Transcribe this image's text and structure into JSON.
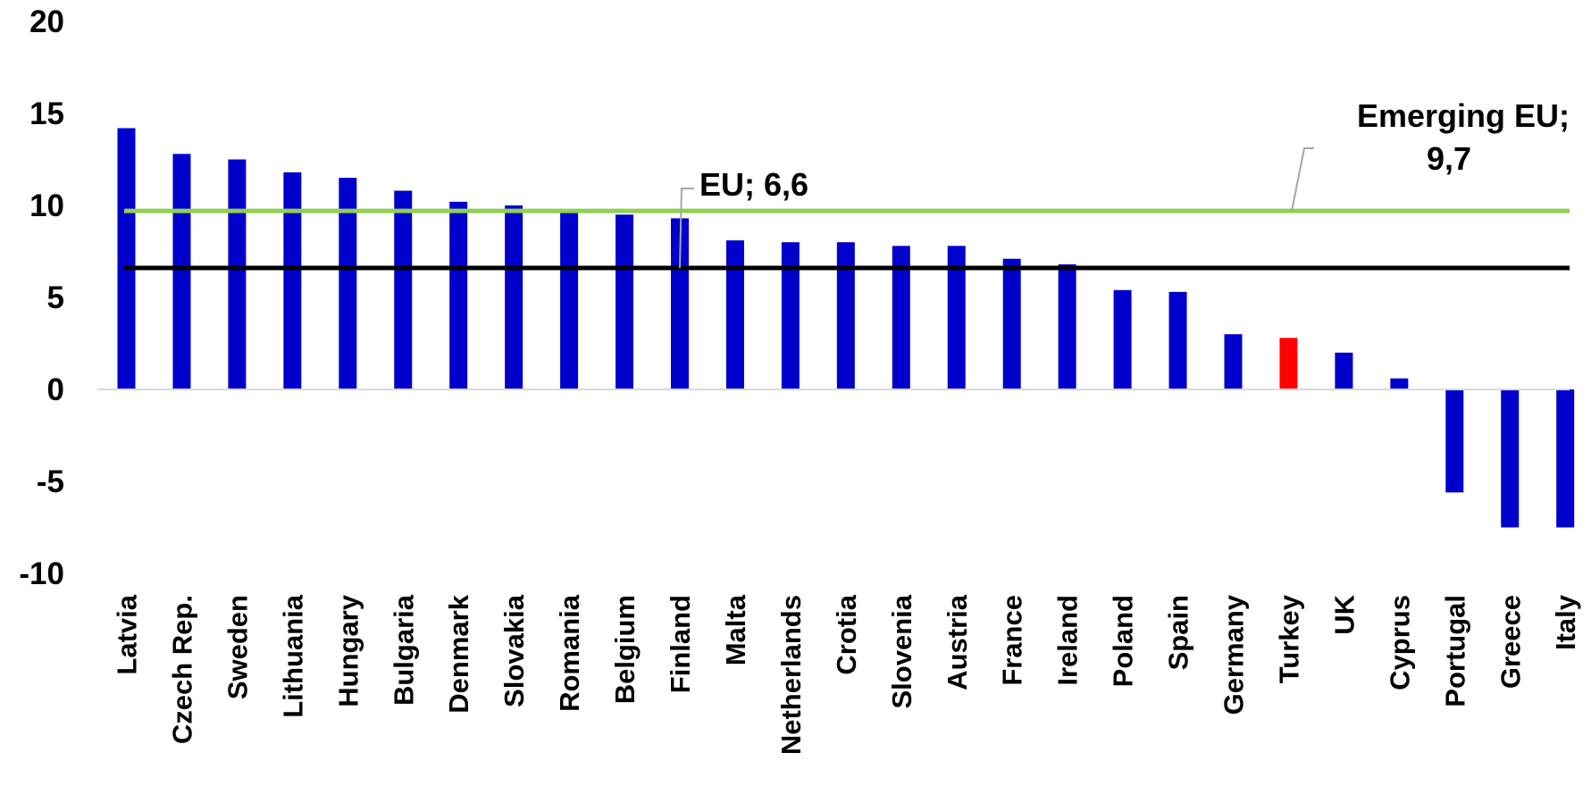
{
  "colors": {
    "bar": "#0000CC",
    "highlight": "#FF0000",
    "eu_line": "#000000",
    "emerging_line": "#92D050",
    "baseline": "#D9D9D9",
    "leader": "#A6A6A6"
  },
  "chart_data": {
    "type": "bar",
    "title": "",
    "xlabel": "",
    "ylabel": "",
    "ylim": [
      -10,
      20
    ],
    "yticks": [
      20,
      15,
      10,
      5,
      0,
      -5,
      -10
    ],
    "grid": false,
    "categories": [
      "Latvia",
      "Czech Rep.",
      "Sweden",
      "Lithuania",
      "Hungary",
      "Bulgaria",
      "Denmark",
      "Slovakia",
      "Romania",
      "Belgium",
      "Finland",
      "Malta",
      "Netherlands",
      "Crotia",
      "Slovenia",
      "Austria",
      "France",
      "Ireland",
      "Poland",
      "Spain",
      "Germany",
      "Turkey",
      "UK",
      "Cyprus",
      "Portugal",
      "Greece",
      "Italy"
    ],
    "values": [
      14.2,
      12.8,
      12.5,
      11.8,
      11.5,
      10.8,
      10.2,
      10.0,
      9.6,
      9.5,
      9.3,
      8.1,
      8.0,
      8.0,
      7.8,
      7.8,
      7.1,
      6.8,
      5.4,
      5.3,
      3.0,
      2.8,
      2.0,
      0.6,
      -5.6,
      -7.5,
      -7.5
    ],
    "highlight_category": "Turkey",
    "reference_lines": [
      {
        "key": "emerging",
        "label_line1": "Emerging EU;",
        "label_line2": "9,7",
        "value": 9.7
      },
      {
        "key": "eu",
        "label_line1": "EU; 6,6",
        "label_line2": "",
        "value": 6.6
      }
    ]
  }
}
